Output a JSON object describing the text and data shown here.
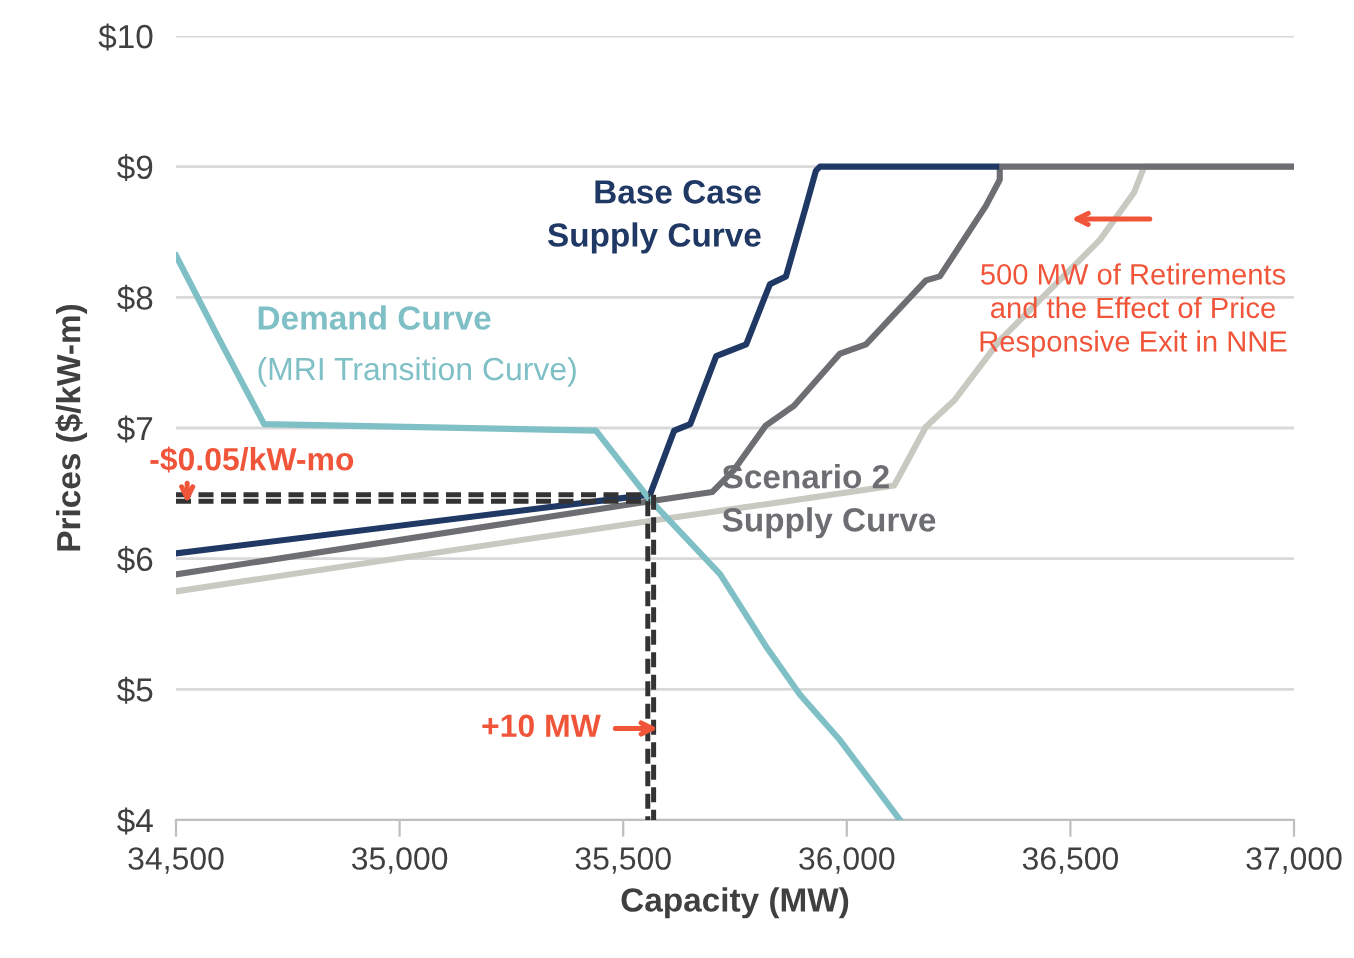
{
  "chart_data": {
    "type": "line",
    "xlabel": "Capacity (MW)",
    "ylabel": "Prices ($/kW-m)",
    "xlim": [
      34500,
      37000
    ],
    "ylim": [
      4,
      10
    ],
    "xticks": [
      {
        "value": 34500,
        "label": "34,500"
      },
      {
        "value": 35000,
        "label": "35,000"
      },
      {
        "value": 35500,
        "label": "35,500"
      },
      {
        "value": 36000,
        "label": "36,000"
      },
      {
        "value": 36500,
        "label": "36,500"
      },
      {
        "value": 37000,
        "label": "37,000"
      }
    ],
    "yticks": [
      {
        "value": 4,
        "label": "$4"
      },
      {
        "value": 5,
        "label": "$5"
      },
      {
        "value": 6,
        "label": "$6"
      },
      {
        "value": 7,
        "label": "$7"
      },
      {
        "value": 8,
        "label": "$8"
      },
      {
        "value": 9,
        "label": "$9"
      },
      {
        "value": 10,
        "label": "$10"
      }
    ],
    "grid": "y",
    "legend": false,
    "marker": "none",
    "series": [
      {
        "color": "#c9c9c2",
        "x": [
          34500,
          35582,
          35806,
          36106,
          36177,
          36240,
          36342,
          36432,
          36566,
          36642,
          36665,
          37000
        ],
        "values": [
          5.75,
          6.3,
          6.41,
          6.56,
          7.01,
          7.21,
          7.67,
          7.98,
          8.44,
          8.8,
          9.0,
          9.0
        ]
      },
      {
        "name": "Scenario 2\nSupply Curve",
        "color": "#6d6e71",
        "x": [
          34500,
          35560,
          35699,
          35748,
          35819,
          35882,
          35985,
          36043,
          36177,
          36208,
          36311,
          36342,
          36342,
          37000
        ],
        "values": [
          5.88,
          6.44,
          6.51,
          6.68,
          7.02,
          7.17,
          7.57,
          7.64,
          8.13,
          8.16,
          8.7,
          8.9,
          9.0,
          9.0
        ]
      },
      {
        "name": "Base Case\nSupply Curve",
        "color": "#1f3864",
        "x": [
          34500,
          35560,
          35614,
          35650,
          35708,
          35775,
          35828,
          35864,
          35909,
          35931,
          35940,
          36334
        ],
        "values": [
          6.04,
          6.49,
          6.98,
          7.03,
          7.55,
          7.64,
          8.1,
          8.16,
          8.7,
          8.97,
          9.0,
          9.0
        ]
      },
      {
        "name": "Demand Curve\n(MRI Transition Curve)",
        "color": "#7fbfc6",
        "x": [
          34500,
          34598,
          34697,
          35439,
          35560,
          35717,
          35819,
          35895,
          35985,
          36119
        ],
        "values": [
          8.32,
          7.67,
          7.03,
          6.98,
          6.45,
          5.88,
          5.33,
          4.96,
          4.61,
          4.0
        ]
      },
      {
        "color": "#333333",
        "line_style": "dashed",
        "x": [
          34500,
          35560
        ],
        "values": [
          6.49,
          6.49
        ]
      },
      {
        "color": "#333333",
        "line_style": "dashed",
        "x": [
          34500,
          35560
        ],
        "values": [
          6.44,
          6.44
        ]
      },
      {
        "color": "#333333",
        "line_style": "dashed",
        "x": [
          35555,
          35555
        ],
        "values": [
          6.44,
          4.0
        ]
      },
      {
        "color": "#333333",
        "line_style": "dashed",
        "x": [
          35568,
          35568
        ],
        "values": [
          6.49,
          4.0
        ]
      }
    ],
    "annotations": [
      "-$0.05/kW-mo",
      "+10 MW",
      "500 MW of Retirements\nand the Effect of Price\nResponsive Exit in NNE"
    ]
  }
}
